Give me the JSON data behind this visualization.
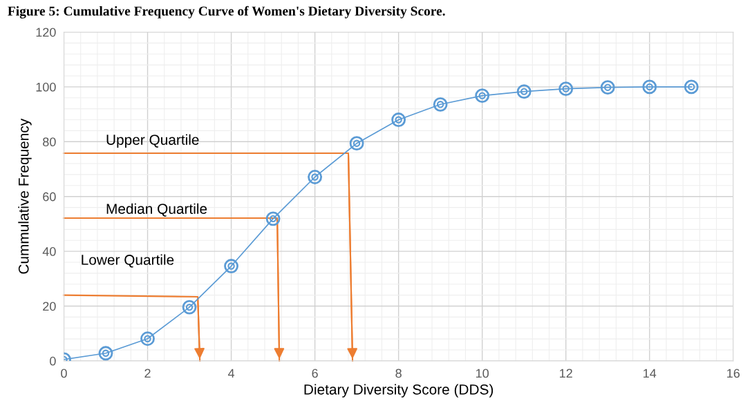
{
  "chart_data": {
    "type": "line",
    "title": "Figure 5: Cumulative Frequency Curve of Women's Dietary Diversity Score.",
    "xlabel": "Dietary Diversity Score (DDS)",
    "ylabel": "Cummulative Frequency",
    "x": [
      0,
      1,
      2,
      3,
      4,
      5,
      6,
      7,
      8,
      9,
      10,
      11,
      12,
      13,
      14,
      15
    ],
    "series": [
      {
        "color": "#5b9bd5",
        "values": [
          0.5,
          2.8,
          8.1,
          19.6,
          34.6,
          51.9,
          67.1,
          79.4,
          88.0,
          93.6,
          96.8,
          98.3,
          99.3,
          99.8,
          100,
          100
        ]
      },
      {
        "name": "Upper Quartile",
        "color": "#ed7d31",
        "marker": "none",
        "x": [
          0,
          6.8,
          6.9
        ],
        "values": [
          75.8,
          75.8,
          0
        ]
      },
      {
        "name": "Median Quartile",
        "color": "#ed7d31",
        "marker": "none",
        "x": [
          0,
          5.1,
          5.15
        ],
        "values": [
          52.1,
          52.1,
          0
        ]
      },
      {
        "name": "Lower Quartile",
        "color": "#ed7d31",
        "marker": "none",
        "x": [
          0,
          3.2,
          3.25
        ],
        "values": [
          24,
          23.4,
          0
        ]
      }
    ],
    "marker": "circle",
    "line_style": "solid",
    "xlim": [
      0,
      16
    ],
    "xticks": [
      0,
      2,
      4,
      6,
      8,
      10,
      12,
      14,
      16
    ],
    "ylim": [
      0,
      120
    ],
    "yticks": [
      0,
      20,
      40,
      60,
      80,
      100,
      120
    ],
    "grid": true
  }
}
